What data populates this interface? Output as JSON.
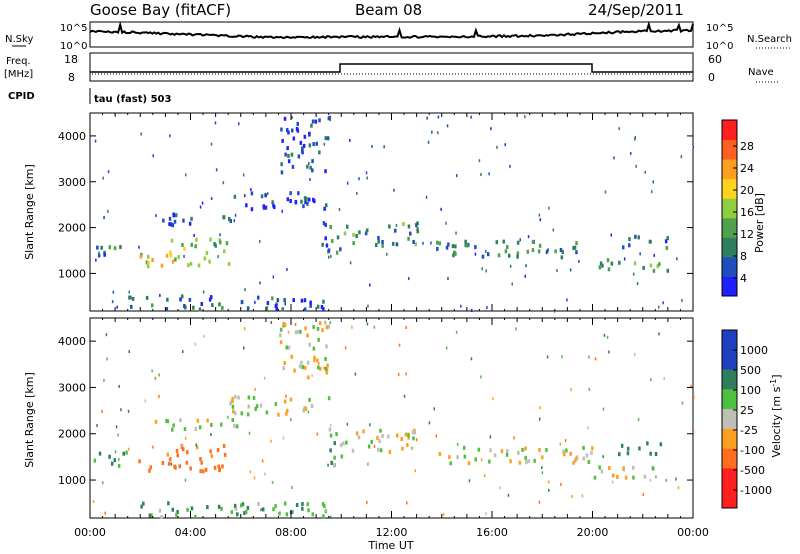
{
  "header": {
    "station": "Goose Bay (fitACF)",
    "beam": "Beam 08",
    "date": "24/Sep/2011"
  },
  "top_panels": {
    "nsky_label": "N.Sky",
    "nsky_ticks": [
      "10^5",
      "10^0"
    ],
    "nsearch_label": "N.Search",
    "nsearch_ticks": [
      "10^5",
      "10^0"
    ],
    "freq_label": "Freq.",
    "freq_unit": "[MHz]",
    "freq_ticks": [
      "18",
      "8"
    ],
    "nave_label": "Nave",
    "nave_ticks": [
      "60",
      "0"
    ],
    "cpid_label": "CPID",
    "cpid_value": "tau (fast) 503"
  },
  "colors": {
    "noise_line": "#000000",
    "power_scale": [
      "#1f1fff",
      "#1f4fbf",
      "#2f7f5f",
      "#4fa04f",
      "#8fcf3f",
      "#ffd21f",
      "#ff9f1f",
      "#ff5f1f",
      "#ff1f1f"
    ],
    "velocity_scale": [
      "#1f3fbf",
      "#2f7f5f",
      "#4fbf3f",
      "#bfbfb5",
      "#ff9f1f",
      "#ff6f1f",
      "#ff1f1f"
    ]
  },
  "chart_data": [
    {
      "type": "line",
      "name": "top-noise",
      "x_unit": "hours UT",
      "x": [
        0,
        2,
        4,
        6,
        8,
        10,
        12,
        14,
        16,
        18,
        20,
        22,
        24
      ],
      "nsky_level": [
        0.62,
        0.58,
        0.5,
        0.42,
        0.38,
        0.4,
        0.41,
        0.41,
        0.43,
        0.45,
        0.55,
        0.63,
        0.66
      ],
      "freq_mhz": 10.5,
      "cpid": 503
    },
    {
      "type": "heatmap",
      "name": "power",
      "xlabel": "",
      "ylabel": "Slant Range [km]",
      "colorbar_label": "Power [dB]",
      "colorbar_ticks": [
        "28",
        "24",
        "20",
        "16",
        "12",
        "8",
        "4"
      ],
      "x_ticks": [
        "00:00",
        "04:00",
        "08:00",
        "12:00",
        "16:00",
        "20:00",
        "00:00"
      ],
      "xlim": [
        0,
        24
      ],
      "ylim": [
        180,
        4500
      ],
      "y_ticks": [
        "4000",
        "3000",
        "2000",
        "1000"
      ],
      "regions": [
        {
          "t0": 0.1,
          "t1": 1.5,
          "r0": 1300,
          "r1": 1600,
          "p": 6
        },
        {
          "t0": 1.8,
          "t1": 5.5,
          "r0": 1150,
          "r1": 1450,
          "p": 18
        },
        {
          "t0": 3.0,
          "t1": 5.5,
          "r0": 1450,
          "r1": 1750,
          "p": 14
        },
        {
          "t0": 2.5,
          "t1": 6.0,
          "r0": 2050,
          "r1": 2300,
          "p": 5
        },
        {
          "t0": 5.5,
          "t1": 9.5,
          "r0": 2400,
          "r1": 2800,
          "p": 5
        },
        {
          "t0": 7.5,
          "t1": 9.5,
          "r0": 3200,
          "r1": 4400,
          "p": 4
        },
        {
          "t0": 9.2,
          "t1": 10.0,
          "r0": 1300,
          "r1": 2100,
          "p": 6
        },
        {
          "t0": 10.0,
          "t1": 13.0,
          "r0": 1600,
          "r1": 2100,
          "p": 10
        },
        {
          "t0": 13.5,
          "t1": 20.0,
          "r0": 1350,
          "r1": 1700,
          "p": 9
        },
        {
          "t0": 20.0,
          "t1": 23.0,
          "r0": 1050,
          "r1": 1300,
          "p": 12
        },
        {
          "t0": 21.0,
          "t1": 23.0,
          "r0": 1550,
          "r1": 1800,
          "p": 8
        },
        {
          "t0": 1.5,
          "t1": 9.5,
          "r0": 200,
          "r1": 500,
          "p": 6
        }
      ]
    },
    {
      "type": "heatmap",
      "name": "velocity",
      "xlabel": "Time UT",
      "ylabel": "Slant Range [km]",
      "colorbar_label": "Velocity [m s-1]",
      "colorbar_ticks": [
        "1000",
        "500",
        "100",
        "25",
        "-25",
        "-100",
        "-500",
        "-1000"
      ],
      "x_ticks": [
        "00:00",
        "04:00",
        "08:00",
        "12:00",
        "16:00",
        "20:00",
        "00:00"
      ],
      "xlim": [
        0,
        24
      ],
      "ylim": [
        180,
        4500
      ],
      "y_ticks": [
        "4000",
        "3000",
        "2000",
        "1000"
      ],
      "regions": [
        {
          "t0": 0.1,
          "t1": 1.5,
          "r0": 1300,
          "r1": 1600,
          "v": 150
        },
        {
          "t0": 1.8,
          "t1": 5.5,
          "r0": 1150,
          "r1": 1450,
          "v": -200
        },
        {
          "t0": 3.0,
          "t1": 5.5,
          "r0": 1450,
          "r1": 1750,
          "v": -150
        },
        {
          "t0": 2.5,
          "t1": 6.0,
          "r0": 2050,
          "r1": 2300,
          "v": 0
        },
        {
          "t0": 5.5,
          "t1": 9.5,
          "r0": 2400,
          "r1": 2800,
          "v": 0
        },
        {
          "t0": 7.5,
          "t1": 9.5,
          "r0": 3200,
          "r1": 4400,
          "v": 0
        },
        {
          "t0": 9.2,
          "t1": 10.0,
          "r0": 1300,
          "r1": 2100,
          "v": 80
        },
        {
          "t0": 10.0,
          "t1": 13.0,
          "r0": 1600,
          "r1": 2100,
          "v": 0
        },
        {
          "t0": 13.5,
          "t1": 20.0,
          "r0": 1350,
          "r1": 1700,
          "v": 0
        },
        {
          "t0": 20.0,
          "t1": 23.0,
          "r0": 1050,
          "r1": 1300,
          "v": 0
        },
        {
          "t0": 21.0,
          "t1": 23.0,
          "r0": 1550,
          "r1": 1800,
          "v": 200
        },
        {
          "t0": 1.5,
          "t1": 9.5,
          "r0": 200,
          "r1": 500,
          "v": 100
        }
      ]
    }
  ]
}
